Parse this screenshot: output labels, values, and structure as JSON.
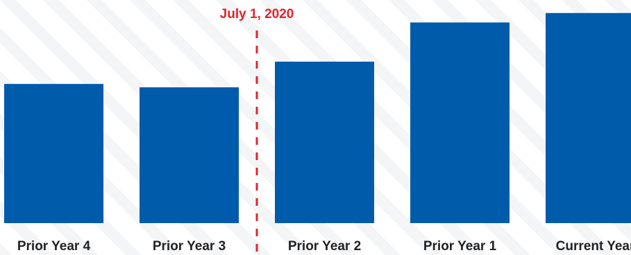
{
  "chart_data": {
    "type": "bar",
    "title": "",
    "xlabel": "",
    "ylabel": "",
    "categories": [
      "Prior Year 4",
      "Prior Year 3",
      "Prior Year 2",
      "Prior Year 1",
      "Current Year"
    ],
    "series": [
      {
        "values": [
          206,
          201,
          239,
          297,
          311
        ]
      }
    ],
    "ylim": [
      0,
      320
    ],
    "grid": false,
    "legend": "none",
    "annotations": [
      {
        "type": "vertical-dashed-line",
        "label": "July 1, 2020",
        "between": [
          "Prior Year 3",
          "Prior Year 2"
        ]
      }
    ],
    "colors": {
      "bar": "#005BAA",
      "annotation": "#E3242B",
      "label": "#222222",
      "stripe": "#F3F5F7"
    }
  }
}
